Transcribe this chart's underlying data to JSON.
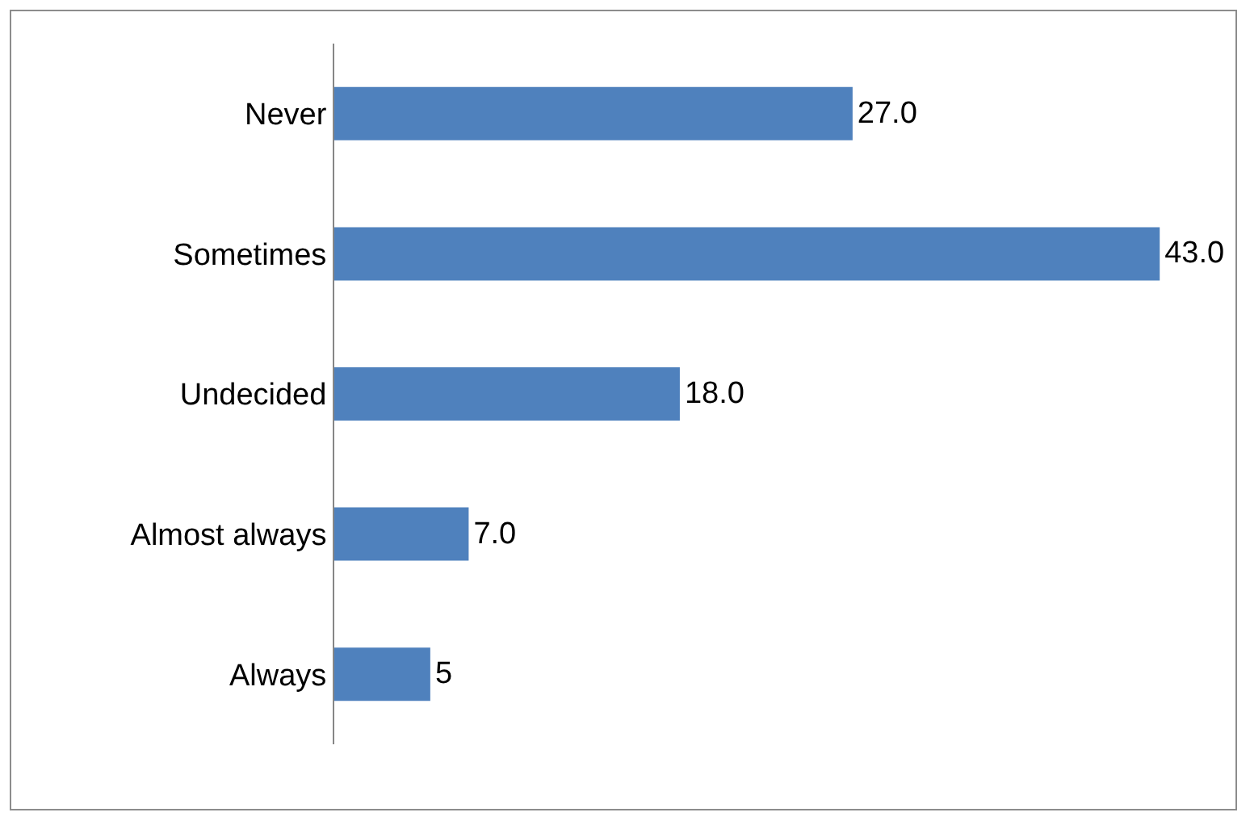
{
  "chart_data": {
    "type": "bar",
    "orientation": "horizontal",
    "categories": [
      "Never",
      "Sometimes",
      "Undecided",
      "Almost always",
      "Always"
    ],
    "values": [
      27.0,
      43.0,
      18.0,
      7.0,
      5
    ],
    "value_labels": [
      "27.0",
      "43.0",
      "18.0",
      "7.0",
      "5"
    ],
    "color": "#4f81bd",
    "grid": false,
    "legend": false
  }
}
